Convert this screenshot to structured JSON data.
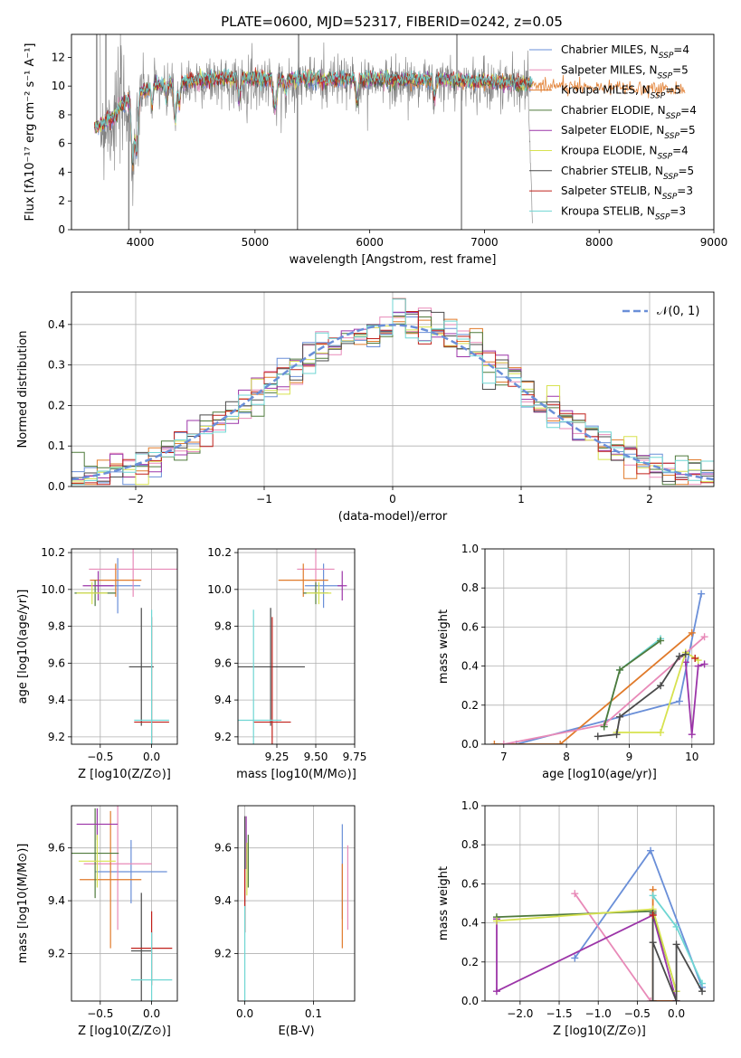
{
  "figure_title": "PLATE=0600, MJD=52317, FIBERID=0242, z=0.05",
  "colors": {
    "blue": "#6a8fd8",
    "pink": "#e88ab8",
    "orange": "#e07a2a",
    "green": "#4f7a3c",
    "purple": "#9c35a8",
    "yellow": "#d7e24f",
    "darkgray": "#4a4a4a",
    "red": "#c0201a",
    "cyan": "#6fd6d3",
    "gray": "#808080",
    "gridgray": "#b0b0b0"
  },
  "chart_data": [
    {
      "id": "spectrum",
      "type": "line",
      "title": "PLATE=0600, MJD=52317, FIBERID=0242, z=0.05",
      "xlabel": "wavelength [Angstrom, rest frame]",
      "ylabel": "Flux [fλ10⁻¹⁷ erg cm⁻² s⁻¹ A⁻¹]",
      "xlim": [
        3400,
        9000
      ],
      "ylim": [
        0,
        13.6
      ],
      "xticks": [
        "4000",
        "5000",
        "6000",
        "7000",
        "8000",
        "9000"
      ],
      "yticks": [
        "0",
        "2",
        "4",
        "6",
        "8",
        "10",
        "12"
      ],
      "grid": false,
      "legend_position": "top-right",
      "series": [
        {
          "name": "Chabrier MILES, NSSP=4",
          "label_main": "Chabrier MILES, N",
          "label_sub": "SSP",
          "label_tail": "=4",
          "color": "#6a8fd8"
        },
        {
          "name": "Salpeter MILES, NSSP=5",
          "label_main": "Salpeter MILES, N",
          "label_sub": "SSP",
          "label_tail": "=5",
          "color": "#e88ab8"
        },
        {
          "name": "Kroupa MILES, NSSP=5",
          "label_main": "Kroupa MILES, N",
          "label_sub": "SSP",
          "label_tail": "=5",
          "color": "#e07a2a"
        },
        {
          "name": "Chabrier ELODIE, NSSP=4",
          "label_main": "Chabrier ELODIE, N",
          "label_sub": "SSP",
          "label_tail": "=4",
          "color": "#4f7a3c"
        },
        {
          "name": "Salpeter ELODIE, NSSP=5",
          "label_main": "Salpeter ELODIE, N",
          "label_sub": "SSP",
          "label_tail": "=5",
          "color": "#9c35a8"
        },
        {
          "name": "Kroupa ELODIE, NSSP=4",
          "label_main": "Kroupa ELODIE, N",
          "label_sub": "SSP",
          "label_tail": "=4",
          "color": "#d7e24f"
        },
        {
          "name": "Chabrier STELIB, NSSP=5",
          "label_main": "Chabrier STELIB, N",
          "label_sub": "SSP",
          "label_tail": "=5",
          "color": "#4a4a4a"
        },
        {
          "name": "Salpeter STELIB, NSSP=3",
          "label_main": "Salpeter STELIB, N",
          "label_sub": "SSP",
          "label_tail": "=3",
          "color": "#c0201a"
        },
        {
          "name": "Kroupa STELIB, NSSP=3",
          "label_main": "Kroupa STELIB, N",
          "label_sub": "SSP",
          "label_tail": "=3",
          "color": "#6fd6d3"
        }
      ]
    },
    {
      "id": "residuals",
      "type": "line",
      "xlabel": "(data-model)/error",
      "ylabel": "Normed distribution",
      "xlim": [
        -2.5,
        2.5
      ],
      "ylim": [
        0,
        0.48
      ],
      "xticks": [
        "−2",
        "−1",
        "0",
        "1",
        "2"
      ],
      "yticks": [
        "0.0",
        "0.1",
        "0.2",
        "0.3",
        "0.4"
      ],
      "grid": true,
      "legend_position": "top-right",
      "legend_label": "𝒩(0, 1)",
      "gaussian": {
        "mean": 0,
        "sigma": 1,
        "style": "dashed",
        "color": "#6a8fd8"
      },
      "bin_width": 0.1
    },
    {
      "id": "age_vs_Z",
      "type": "scatter",
      "xlabel": "Z [log10(Z/Z⊙)]",
      "ylabel": "age  [log10(age/yr)]",
      "xlim": [
        -0.78,
        0.25
      ],
      "ylim": [
        9.16,
        10.22
      ],
      "xticks": [
        "−0.5",
        "0.0"
      ],
      "yticks": [
        "9.2",
        "9.4",
        "9.6",
        "9.8",
        "10.0",
        "10.2"
      ],
      "grid": true,
      "points": [
        {
          "color": "#6a8fd8",
          "x": -0.33,
          "xerr": 0.22,
          "y": 10.02,
          "yerr": 0.15
        },
        {
          "color": "#e88ab8",
          "x": -0.18,
          "xerr": 0.43,
          "y": 10.11,
          "yerr": 0.15
        },
        {
          "color": "#e07a2a",
          "x": -0.35,
          "xerr": 0.25,
          "y": 10.05,
          "yerr": 0.09
        },
        {
          "color": "#4f7a3c",
          "x": -0.55,
          "xerr": 0.2,
          "y": 9.98,
          "yerr": 0.07
        },
        {
          "color": "#9c35a8",
          "x": -0.52,
          "xerr": 0.15,
          "y": 10.02,
          "yerr": 0.08
        },
        {
          "color": "#d7e24f",
          "x": -0.58,
          "xerr": 0.15,
          "y": 9.98,
          "yerr": 0.06
        },
        {
          "color": "#4a4a4a",
          "x": -0.1,
          "xerr": 0.12,
          "y": 9.58,
          "yerr": 0.32
        },
        {
          "color": "#c0201a",
          "x": 0.0,
          "xerr": 0.17,
          "y": 9.28,
          "yerr": 0.57
        },
        {
          "color": "#6fd6d3",
          "x": 0.0,
          "xerr": 0.17,
          "y": 9.29,
          "yerr": 0.6
        }
      ]
    },
    {
      "id": "age_vs_mass",
      "type": "scatter",
      "xlabel": "mass [log10(M/M⊙)]",
      "ylabel": "",
      "xlim": [
        9.0,
        9.75
      ],
      "ylim": [
        9.16,
        10.22
      ],
      "xticks": [
        "9.25",
        "9.50",
        "9.75"
      ],
      "yticks": [
        "9.2",
        "9.4",
        "9.6",
        "9.8",
        "10.0",
        "10.2"
      ],
      "grid": true,
      "points": [
        {
          "color": "#6a8fd8",
          "x": 9.55,
          "xerr": 0.12,
          "y": 10.02,
          "yerr": 0.12
        },
        {
          "color": "#e88ab8",
          "x": 9.5,
          "xerr": 0.12,
          "y": 10.11,
          "yerr": 0.13
        },
        {
          "color": "#e07a2a",
          "x": 9.42,
          "xerr": 0.16,
          "y": 10.05,
          "yerr": 0.09
        },
        {
          "color": "#4f7a3c",
          "x": 9.5,
          "xerr": 0.08,
          "y": 9.98,
          "yerr": 0.06
        },
        {
          "color": "#9c35a8",
          "x": 9.67,
          "xerr": 0.03,
          "y": 10.02,
          "yerr": 0.08
        },
        {
          "color": "#d7e24f",
          "x": 9.52,
          "xerr": 0.08,
          "y": 9.98,
          "yerr": 0.06
        },
        {
          "color": "#4a4a4a",
          "x": 9.21,
          "xerr": 0.22,
          "y": 9.58,
          "yerr": 0.32
        },
        {
          "color": "#c0201a",
          "x": 9.22,
          "xerr": 0.12,
          "y": 9.28,
          "yerr": 0.57
        },
        {
          "color": "#6fd6d3",
          "x": 9.1,
          "xerr": 0.18,
          "y": 9.29,
          "yerr": 0.6
        }
      ]
    },
    {
      "id": "mass_weight_vs_age",
      "type": "line",
      "xlabel": "age  [log10(age/yr)]",
      "ylabel": "mass weight",
      "xlim": [
        6.7,
        10.35
      ],
      "ylim": [
        0,
        1
      ],
      "xticks": [
        "7",
        "8",
        "9",
        "10"
      ],
      "yticks": [
        "0.0",
        "0.2",
        "0.4",
        "0.6",
        "0.8",
        "1.0"
      ],
      "grid": true,
      "series": [
        {
          "color": "#6a8fd8",
          "x": [
            7.2,
            9.8,
            10.15
          ],
          "y": [
            0.0,
            0.22,
            0.77
          ]
        },
        {
          "color": "#e07a2a",
          "x": [
            6.85,
            7.9,
            10.0
          ],
          "y": [
            0.0,
            0.0,
            0.57
          ]
        },
        {
          "color": "#e88ab8",
          "x": [
            7.0,
            8.6,
            10.2
          ],
          "y": [
            0.0,
            0.1,
            0.55
          ]
        },
        {
          "color": "#6fd6d3",
          "x": [
            8.6,
            8.85,
            9.5
          ],
          "y": [
            0.09,
            0.38,
            0.54
          ]
        },
        {
          "color": "#4f7a3c",
          "x": [
            8.6,
            8.85,
            9.5
          ],
          "y": [
            0.09,
            0.38,
            0.53
          ]
        },
        {
          "color": "#9c35a8",
          "x": [
            9.9,
            10.0,
            10.1,
            10.2
          ],
          "y": [
            0.42,
            0.05,
            0.4,
            0.41
          ]
        },
        {
          "color": "#d7e24f",
          "x": [
            8.8,
            9.5,
            9.9,
            10.1
          ],
          "y": [
            0.06,
            0.06,
            0.47,
            0.43
          ]
        },
        {
          "color": "#4a4a4a",
          "x": [
            8.5,
            8.8,
            8.85,
            9.5,
            9.8,
            9.9
          ],
          "y": [
            0.04,
            0.05,
            0.14,
            0.3,
            0.45,
            0.46
          ]
        },
        {
          "color": "#c0201a",
          "x": [
            10.05
          ],
          "y": [
            0.44
          ]
        }
      ]
    },
    {
      "id": "mass_vs_Z",
      "type": "scatter",
      "xlabel": "Z [log10(Z/Z⊙)]",
      "ylabel": "mass [log10(M/M⊙)]",
      "xlim": [
        -0.78,
        0.25
      ],
      "ylim": [
        9.02,
        9.76
      ],
      "xticks": [
        "−0.5",
        "0.0"
      ],
      "yticks": [
        "9.2",
        "9.4",
        "9.6"
      ],
      "grid": true,
      "points": [
        {
          "color": "#6a8fd8",
          "x": -0.2,
          "xerr": 0.35,
          "y": 9.51,
          "yerr": 0.12
        },
        {
          "color": "#e88ab8",
          "x": -0.33,
          "xerr": 0.33,
          "y": 9.54,
          "yerr": 0.25
        },
        {
          "color": "#e07a2a",
          "x": -0.4,
          "xerr": 0.3,
          "y": 9.48,
          "yerr": 0.26
        },
        {
          "color": "#4f7a3c",
          "x": -0.55,
          "xerr": 0.23,
          "y": 9.58,
          "yerr": 0.17
        },
        {
          "color": "#9c35a8",
          "x": -0.53,
          "xerr": 0.2,
          "y": 9.69,
          "yerr": 0.06
        },
        {
          "color": "#d7e24f",
          "x": -0.53,
          "xerr": 0.18,
          "y": 9.55,
          "yerr": 0.1
        },
        {
          "color": "#4a4a4a",
          "x": -0.1,
          "xerr": 0.1,
          "y": 9.21,
          "yerr": 0.22
        },
        {
          "color": "#c0201a",
          "x": 0.0,
          "xerr": 0.2,
          "y": 9.22,
          "yerr": 0.14
        },
        {
          "color": "#6fd6d3",
          "x": 0.0,
          "xerr": 0.2,
          "y": 9.1,
          "yerr": 0.18
        }
      ]
    },
    {
      "id": "mass_vs_ebv",
      "type": "scatter",
      "xlabel": "E(B-V)",
      "ylabel": "",
      "xlim": [
        -0.01,
        0.16
      ],
      "ylim": [
        9.02,
        9.76
      ],
      "xticks": [
        "0.0",
        "0.1"
      ],
      "yticks": [
        "9.2",
        "9.4",
        "9.6"
      ],
      "grid": true,
      "points": [
        {
          "color": "#6a8fd8",
          "x": 0.142,
          "y": 9.51,
          "yerr": 0.18
        },
        {
          "color": "#e88ab8",
          "x": 0.15,
          "y": 9.45,
          "yerr": 0.16
        },
        {
          "color": "#e07a2a",
          "x": 0.142,
          "y": 9.38,
          "yerr": 0.16
        },
        {
          "color": "#4f7a3c",
          "x": 0.005,
          "y": 9.55,
          "yerr": 0.1
        },
        {
          "color": "#9c35a8",
          "x": 0.002,
          "y": 9.62,
          "yerr": 0.1
        },
        {
          "color": "#d7e24f",
          "x": 0.003,
          "y": 9.52,
          "yerr": 0.1
        },
        {
          "color": "#4a4a4a",
          "x": 0.0,
          "y": 9.5,
          "yerr": 0.22
        },
        {
          "color": "#c0201a",
          "x": 0.0,
          "y": 9.4,
          "yerr": 0.12
        },
        {
          "color": "#6fd6d3",
          "x": 0.0,
          "y": 9.2,
          "yerr": 0.18
        }
      ]
    },
    {
      "id": "mass_weight_vs_Z",
      "type": "line",
      "xlabel": "Z [log10(Z/Z⊙)]",
      "ylabel": "mass weight",
      "xlim": [
        -2.45,
        0.48
      ],
      "ylim": [
        0,
        1
      ],
      "xticks": [
        "−2.0",
        "−1.5",
        "−1.0",
        "−0.5",
        "0.0"
      ],
      "yticks": [
        "0.0",
        "0.2",
        "0.4",
        "0.6",
        "0.8",
        "1.0"
      ],
      "grid": true,
      "series": [
        {
          "color": "#6a8fd8",
          "x": [
            -1.3,
            -0.33,
            0.33
          ],
          "y": [
            0.22,
            0.77,
            0.07
          ]
        },
        {
          "color": "#e88ab8",
          "x": [
            -1.3,
            -0.33,
            0.0
          ],
          "y": [
            0.55,
            0.0,
            0.0
          ]
        },
        {
          "color": "#e07a2a",
          "x": [
            -0.3,
            -0.3,
            0.0
          ],
          "y": [
            0.57,
            0.0,
            0.0
          ]
        },
        {
          "color": "#9c35a8",
          "x": [
            -2.3,
            -2.3,
            -0.3,
            0.0
          ],
          "y": [
            0.42,
            0.05,
            0.44,
            0.0
          ]
        },
        {
          "color": "#4f7a3c",
          "x": [
            -2.3,
            -0.3,
            0.0
          ],
          "y": [
            0.43,
            0.46,
            0.05
          ]
        },
        {
          "color": "#d7e24f",
          "x": [
            -2.3,
            -0.3,
            0.0
          ],
          "y": [
            0.41,
            0.47,
            0.05
          ]
        },
        {
          "color": "#4a4a4a",
          "x": [
            -0.3,
            -0.3,
            -0.3,
            0.0,
            0.0,
            0.33
          ],
          "y": [
            0.45,
            0.0,
            0.3,
            0.0,
            0.29,
            0.05
          ]
        },
        {
          "color": "#c0201a",
          "x": [
            -0.3
          ],
          "y": [
            0.44
          ]
        },
        {
          "color": "#6fd6d3",
          "x": [
            -0.3,
            0.0,
            0.33
          ],
          "y": [
            0.54,
            0.38,
            0.09
          ]
        }
      ]
    }
  ]
}
